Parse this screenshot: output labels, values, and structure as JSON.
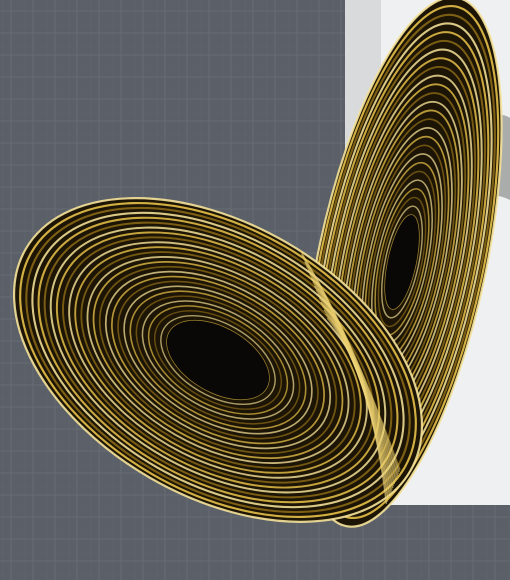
{
  "image": {
    "subject": "lorenz-attractor",
    "palette": {
      "backdrop": "#5b6068",
      "backdrop_grid": "#6c7078",
      "panel": "#eef0f2",
      "panel_shadow": "#9a9a9a",
      "gold": "#e8c24a",
      "gold_light": "#f6e39a",
      "gold_dark": "#8a6a18",
      "core": "#0a0806"
    }
  }
}
